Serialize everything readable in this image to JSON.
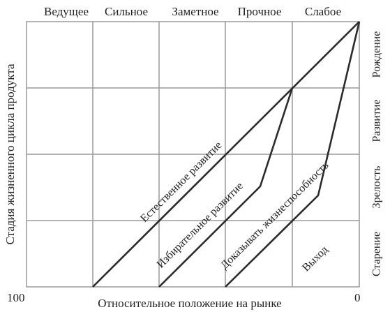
{
  "top_labels": [
    "Ведущее",
    "Сильное",
    "Заметное",
    "Прочное",
    "Слабое"
  ],
  "right_labels": [
    "Рождение",
    "Развитие",
    "Зрелость",
    "Старение"
  ],
  "y_axis_title": "Стадия жизненного цикла продукта",
  "x_axis_title": "Относительное положение на рынке",
  "x_axis_left_value": "100",
  "x_axis_right_value": "0",
  "strategy_labels": {
    "natural": "Естественное развитие",
    "selective": "Избирательное развитие",
    "prove": "Доказывать жизнеспособность",
    "exit": "Выход"
  },
  "colors": {
    "grid": "#9a9a9a",
    "lines": "#2b2b2b",
    "text": "#222222"
  }
}
